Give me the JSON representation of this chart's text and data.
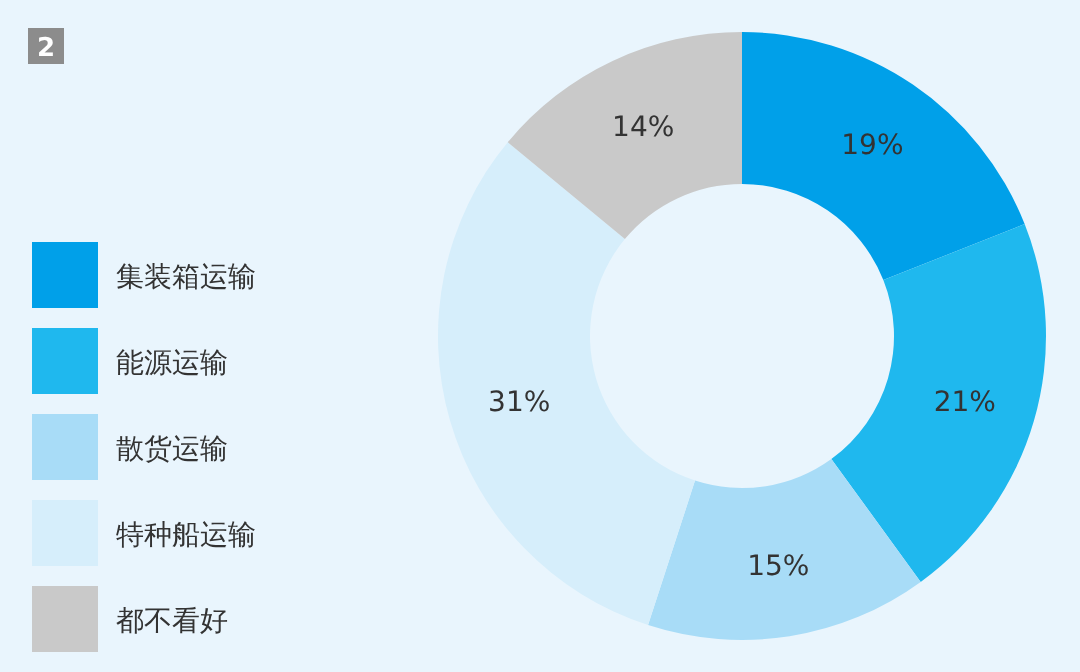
{
  "chart_data": {
    "type": "donut",
    "categories": [
      "集装箱运输",
      "能源运输",
      "散货运输",
      "特种船运输",
      "都不看好"
    ],
    "values": [
      19,
      21,
      15,
      31,
      14
    ],
    "colors": [
      "#00a0e9",
      "#1fb8ee",
      "#a8dcf7",
      "#d6eefb",
      "#c9c9c9"
    ],
    "value_labels": [
      "19%",
      "21%",
      "15%",
      "31%",
      "14%"
    ],
    "legend": "left",
    "annotations": [
      "2"
    ]
  }
}
